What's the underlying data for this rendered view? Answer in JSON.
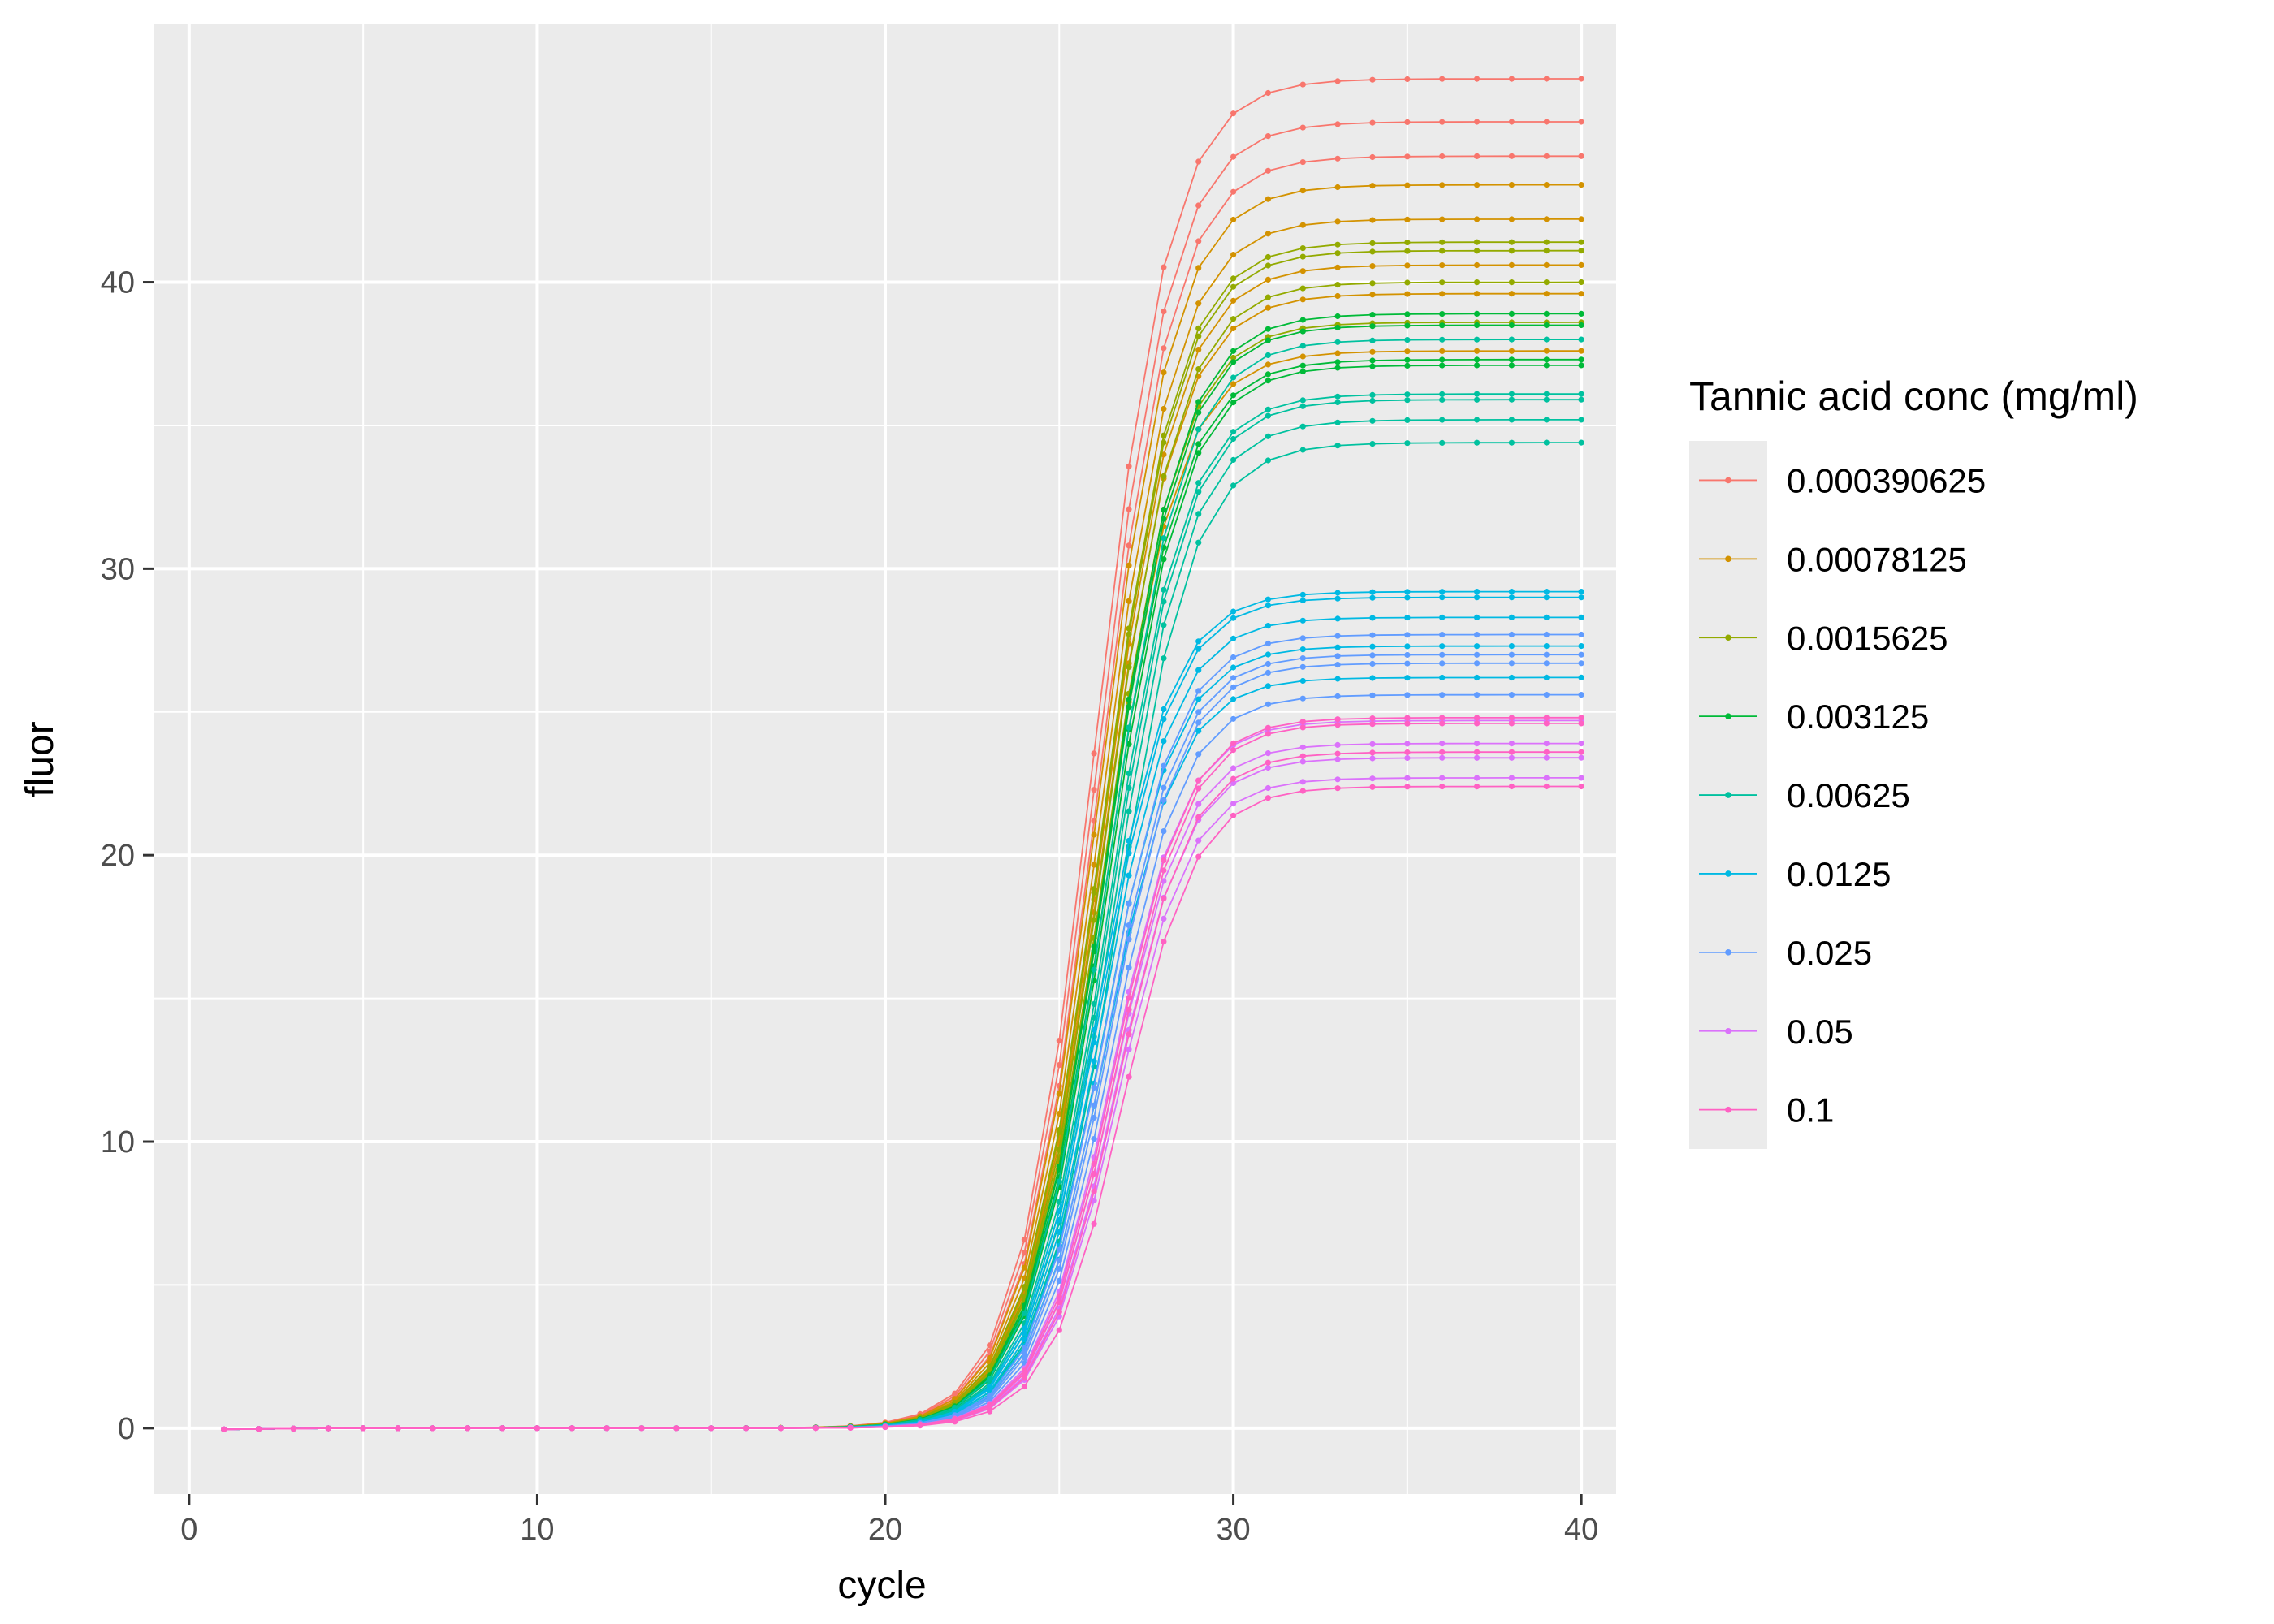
{
  "chart_data": {
    "type": "line",
    "xlabel": "cycle",
    "ylabel": "fluor",
    "xlim": [
      -1,
      41
    ],
    "ylim": [
      -2.3,
      49
    ],
    "x_ticks": [
      0,
      10,
      20,
      30,
      40
    ],
    "y_ticks": [
      0,
      10,
      20,
      30,
      40
    ],
    "grid": true,
    "legend": {
      "title": "Tannic acid conc (mg/ml)",
      "placement": "right",
      "entries": [
        {
          "label": "0.000390625",
          "color": "#F8766D"
        },
        {
          "label": "0.00078125",
          "color": "#D39200"
        },
        {
          "label": "0.0015625",
          "color": "#93AA00"
        },
        {
          "label": "0.003125",
          "color": "#00BA38"
        },
        {
          "label": "0.00625",
          "color": "#00C19F"
        },
        {
          "label": "0.0125",
          "color": "#00B9E3"
        },
        {
          "label": "0.025",
          "color": "#619CFF"
        },
        {
          "label": "0.05",
          "color": "#DB72FB"
        },
        {
          "label": "0.1",
          "color": "#FF61C3"
        }
      ]
    },
    "x": [
      1,
      40
    ],
    "curve_model": "sigmoid",
    "series": [
      {
        "color": "#F8766D",
        "plateau": 47.1,
        "midpoint": 26.0,
        "slope": 1.1
      },
      {
        "color": "#F8766D",
        "plateau": 45.6,
        "midpoint": 26.05,
        "slope": 1.1
      },
      {
        "color": "#F8766D",
        "plateau": 44.4,
        "midpoint": 26.1,
        "slope": 1.1
      },
      {
        "color": "#D39200",
        "plateau": 43.4,
        "midpoint": 26.1,
        "slope": 1.1
      },
      {
        "color": "#D39200",
        "plateau": 42.2,
        "midpoint": 26.15,
        "slope": 1.1
      },
      {
        "color": "#D39200",
        "plateau": 40.6,
        "midpoint": 26.2,
        "slope": 1.1
      },
      {
        "color": "#D39200",
        "plateau": 39.6,
        "midpoint": 26.2,
        "slope": 1.1
      },
      {
        "color": "#D39200",
        "plateau": 37.6,
        "midpoint": 26.2,
        "slope": 1.1
      },
      {
        "color": "#93AA00",
        "plateau": 41.4,
        "midpoint": 26.2,
        "slope": 1.1
      },
      {
        "color": "#93AA00",
        "plateau": 41.1,
        "midpoint": 26.2,
        "slope": 1.1
      },
      {
        "color": "#93AA00",
        "plateau": 40.0,
        "midpoint": 26.25,
        "slope": 1.1
      },
      {
        "color": "#93AA00",
        "plateau": 38.6,
        "midpoint": 26.25,
        "slope": 1.1
      },
      {
        "color": "#00BA38",
        "plateau": 38.9,
        "midpoint": 26.3,
        "slope": 1.1
      },
      {
        "color": "#00BA38",
        "plateau": 38.5,
        "midpoint": 26.3,
        "slope": 1.1
      },
      {
        "color": "#00BA38",
        "plateau": 37.3,
        "midpoint": 26.3,
        "slope": 1.1
      },
      {
        "color": "#00BA38",
        "plateau": 37.1,
        "midpoint": 26.35,
        "slope": 1.1
      },
      {
        "color": "#00C19F",
        "plateau": 38.0,
        "midpoint": 26.35,
        "slope": 1.1
      },
      {
        "color": "#00C19F",
        "plateau": 36.1,
        "midpoint": 26.4,
        "slope": 1.1
      },
      {
        "color": "#00C19F",
        "plateau": 35.9,
        "midpoint": 26.45,
        "slope": 1.1
      },
      {
        "color": "#00C19F",
        "plateau": 35.2,
        "midpoint": 26.5,
        "slope": 1.1
      },
      {
        "color": "#00C19F",
        "plateau": 34.4,
        "midpoint": 26.6,
        "slope": 1.1
      },
      {
        "color": "#00B9E3",
        "plateau": 29.2,
        "midpoint": 26.1,
        "slope": 1.05
      },
      {
        "color": "#00B9E3",
        "plateau": 29.0,
        "midpoint": 26.15,
        "slope": 1.05
      },
      {
        "color": "#00B9E3",
        "plateau": 28.3,
        "midpoint": 26.2,
        "slope": 1.05
      },
      {
        "color": "#00B9E3",
        "plateau": 27.3,
        "midpoint": 26.25,
        "slope": 1.05
      },
      {
        "color": "#00B9E3",
        "plateau": 26.2,
        "midpoint": 26.3,
        "slope": 1.05
      },
      {
        "color": "#619CFF",
        "plateau": 27.7,
        "midpoint": 26.3,
        "slope": 1.05
      },
      {
        "color": "#619CFF",
        "plateau": 27.0,
        "midpoint": 26.35,
        "slope": 1.05
      },
      {
        "color": "#619CFF",
        "plateau": 26.7,
        "midpoint": 26.4,
        "slope": 1.05
      },
      {
        "color": "#619CFF",
        "plateau": 25.6,
        "midpoint": 26.45,
        "slope": 1.05
      },
      {
        "color": "#DB72FB",
        "plateau": 24.7,
        "midpoint": 26.5,
        "slope": 1.05
      },
      {
        "color": "#DB72FB",
        "plateau": 23.9,
        "midpoint": 26.55,
        "slope": 1.05
      },
      {
        "color": "#DB72FB",
        "plateau": 23.4,
        "midpoint": 26.6,
        "slope": 1.05
      },
      {
        "color": "#DB72FB",
        "plateau": 22.7,
        "midpoint": 26.65,
        "slope": 1.05
      },
      {
        "color": "#FF61C3",
        "plateau": 24.8,
        "midpoint": 26.55,
        "slope": 1.05
      },
      {
        "color": "#FF61C3",
        "plateau": 24.6,
        "midpoint": 26.6,
        "slope": 1.05
      },
      {
        "color": "#FF61C3",
        "plateau": 23.6,
        "midpoint": 26.65,
        "slope": 1.05
      },
      {
        "color": "#FF61C3",
        "plateau": 22.4,
        "midpoint": 26.8,
        "slope": 1.05
      }
    ]
  }
}
